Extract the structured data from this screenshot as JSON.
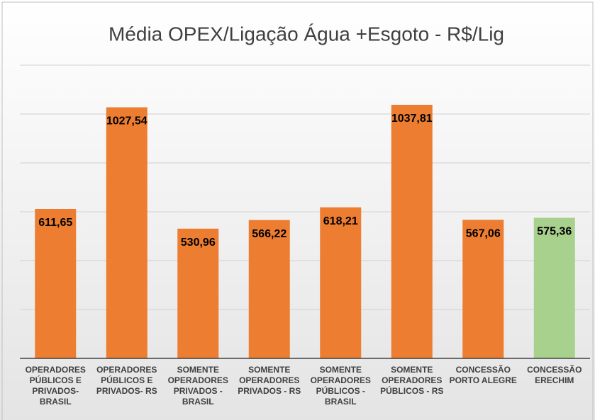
{
  "chart_data": {
    "type": "bar",
    "title": "Média OPEX/Ligação Água +Esgoto - R$/Lig",
    "categories": [
      "OPERADORES PÚBLICOS E PRIVADOS- BRASIL",
      "OPERADORES PÚBLICOS E PRIVADOS- RS",
      "SOMENTE OPERADORES PRIVADOS - BRASIL",
      "SOMENTE OPERADORES PRIVADOS - RS",
      "SOMENTE OPERADORES PÚBLICOS - BRASIL",
      "SOMENTE OPERADORES PÚBLICOS - RS",
      "CONCESSÃO PORTO ALEGRE",
      "CONCESSÃO ERECHIM"
    ],
    "values": [
      611.65,
      1027.54,
      530.96,
      566.22,
      618.21,
      1037.81,
      567.06,
      575.36
    ],
    "value_labels": [
      "611,65",
      "1027,54",
      "530,96",
      "566,22",
      "618,21",
      "1037,81",
      "567,06",
      "575,36"
    ],
    "colors": [
      "#ED7D31",
      "#ED7D31",
      "#ED7D31",
      "#ED7D31",
      "#ED7D31",
      "#ED7D31",
      "#ED7D31",
      "#A9D18E"
    ],
    "ylim": [
      0,
      1200
    ],
    "yticks": [
      0,
      200,
      400,
      600,
      800,
      1000,
      1200
    ],
    "grid": true
  }
}
